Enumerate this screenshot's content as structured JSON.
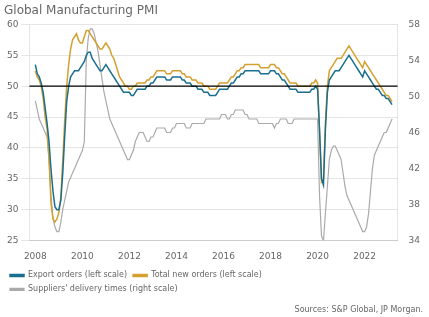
{
  "chart_data": {
    "type": "line",
    "title": "Global Manufacturing PMI",
    "x": [
      2008.0,
      2008.083,
      2008.167,
      2008.25,
      2008.333,
      2008.417,
      2008.5,
      2008.583,
      2008.667,
      2008.75,
      2008.833,
      2008.917,
      2009.0,
      2009.083,
      2009.167,
      2009.25,
      2009.333,
      2009.417,
      2009.5,
      2009.583,
      2009.667,
      2009.75,
      2009.833,
      2009.917,
      2010.0,
      2010.083,
      2010.167,
      2010.25,
      2010.333,
      2010.417,
      2010.5,
      2010.583,
      2010.667,
      2010.75,
      2010.833,
      2010.917,
      2011.0,
      2011.083,
      2011.167,
      2011.25,
      2011.333,
      2011.417,
      2011.5,
      2011.583,
      2011.667,
      2011.75,
      2011.833,
      2011.917,
      2012.0,
      2012.083,
      2012.167,
      2012.25,
      2012.333,
      2012.417,
      2012.5,
      2012.583,
      2012.667,
      2012.75,
      2012.833,
      2012.917,
      2013.0,
      2013.083,
      2013.167,
      2013.25,
      2013.333,
      2013.417,
      2013.5,
      2013.583,
      2013.667,
      2013.75,
      2013.833,
      2013.917,
      2014.0,
      2014.083,
      2014.167,
      2014.25,
      2014.333,
      2014.417,
      2014.5,
      2014.583,
      2014.667,
      2014.75,
      2014.833,
      2014.917,
      2015.0,
      2015.083,
      2015.167,
      2015.25,
      2015.333,
      2015.417,
      2015.5,
      2015.583,
      2015.667,
      2015.75,
      2015.833,
      2015.917,
      2016.0,
      2016.083,
      2016.167,
      2016.25,
      2016.333,
      2016.417,
      2016.5,
      2016.583,
      2016.667,
      2016.75,
      2016.833,
      2016.917,
      2017.0,
      2017.083,
      2017.167,
      2017.25,
      2017.333,
      2017.417,
      2017.5,
      2017.583,
      2017.667,
      2017.75,
      2017.833,
      2017.917,
      2018.0,
      2018.083,
      2018.167,
      2018.25,
      2018.333,
      2018.417,
      2018.5,
      2018.583,
      2018.667,
      2018.75,
      2018.833,
      2018.917,
      2019.0,
      2019.083,
      2019.167,
      2019.25,
      2019.333,
      2019.417,
      2019.5,
      2019.583,
      2019.667,
      2019.75,
      2019.833,
      2019.917,
      2020.0,
      2020.083,
      2020.167,
      2020.25,
      2020.333,
      2020.417,
      2020.5,
      2020.583,
      2020.667,
      2020.75,
      2020.833,
      2020.917,
      2021.0,
      2021.083,
      2021.167,
      2021.25,
      2021.333,
      2021.417,
      2021.5,
      2021.583,
      2021.667,
      2021.75,
      2021.833,
      2021.917,
      2022.0,
      2022.083,
      2022.167,
      2022.25,
      2022.333,
      2022.417,
      2022.5,
      2022.583,
      2022.667,
      2022.75,
      2022.833,
      2022.917,
      2023.0,
      2023.083,
      2023.167
    ],
    "series": [
      {
        "name": "Export orders (left scale)",
        "color": "#1a6e8e",
        "values": [
          53.5,
          52.0,
          51.5,
          50.5,
          49.0,
          46.5,
          44.0,
          41.0,
          36.5,
          33.0,
          30.5,
          30.0,
          30.0,
          31.5,
          36.0,
          42.0,
          47.5,
          50.0,
          51.5,
          52.0,
          52.5,
          52.5,
          52.5,
          53.0,
          53.5,
          54.0,
          55.0,
          55.5,
          55.5,
          54.5,
          54.0,
          53.5,
          53.0,
          52.5,
          52.5,
          53.0,
          53.5,
          53.0,
          52.5,
          52.0,
          51.5,
          51.0,
          50.5,
          50.0,
          49.5,
          49.0,
          49.0,
          49.0,
          49.0,
          48.5,
          48.5,
          49.0,
          49.5,
          49.5,
          49.5,
          49.5,
          49.5,
          50.0,
          50.0,
          50.5,
          50.5,
          51.0,
          51.5,
          51.5,
          51.5,
          51.5,
          51.5,
          51.0,
          51.0,
          51.0,
          51.5,
          51.5,
          51.5,
          51.5,
          51.5,
          51.0,
          51.0,
          50.5,
          50.5,
          50.5,
          50.0,
          50.0,
          50.0,
          49.5,
          49.5,
          49.5,
          49.0,
          49.0,
          49.0,
          48.5,
          48.5,
          48.5,
          48.5,
          49.0,
          49.5,
          49.5,
          49.5,
          49.5,
          49.5,
          50.0,
          50.5,
          50.5,
          51.0,
          51.5,
          51.5,
          52.0,
          52.0,
          52.5,
          52.5,
          52.5,
          52.5,
          52.5,
          52.5,
          52.5,
          52.5,
          52.0,
          52.0,
          52.0,
          52.0,
          52.0,
          52.5,
          52.5,
          52.5,
          52.0,
          52.0,
          51.5,
          51.0,
          51.0,
          50.5,
          50.0,
          49.5,
          49.5,
          49.5,
          49.5,
          49.0,
          49.0,
          49.0,
          49.0,
          49.0,
          49.0,
          49.0,
          49.5,
          49.5,
          50.0,
          49.5,
          43.0,
          35.0,
          34.0,
          43.0,
          49.0,
          51.0,
          51.5,
          52.0,
          52.5,
          52.5,
          52.5,
          53.0,
          53.5,
          54.0,
          54.5,
          55.0,
          54.5,
          54.0,
          53.5,
          53.0,
          52.5,
          52.0,
          51.5,
          52.5,
          52.0,
          51.5,
          51.0,
          50.5,
          50.0,
          49.5,
          49.5,
          49.0,
          48.5,
          48.5,
          48.0,
          48.0,
          47.5,
          47.0
        ]
      },
      {
        "name": "Total new orders (left scale)",
        "color": "#d4a030",
        "values": [
          52.5,
          51.5,
          51.0,
          50.0,
          48.0,
          45.0,
          43.0,
          38.0,
          31.0,
          28.5,
          28.0,
          28.5,
          29.5,
          32.0,
          38.0,
          44.5,
          50.0,
          53.5,
          56.0,
          57.5,
          58.0,
          58.5,
          57.5,
          57.0,
          57.0,
          58.0,
          59.0,
          59.0,
          58.5,
          58.0,
          57.5,
          57.0,
          56.5,
          56.0,
          56.0,
          56.5,
          57.0,
          56.5,
          56.0,
          55.0,
          54.5,
          53.5,
          52.5,
          51.5,
          51.0,
          50.5,
          50.0,
          50.0,
          49.5,
          49.5,
          50.0,
          50.0,
          50.5,
          50.5,
          50.5,
          50.5,
          50.5,
          51.0,
          51.0,
          51.5,
          51.5,
          52.0,
          52.5,
          52.5,
          52.5,
          52.5,
          52.5,
          52.0,
          52.0,
          52.0,
          52.5,
          52.5,
          52.5,
          52.5,
          52.5,
          52.0,
          52.0,
          51.5,
          51.5,
          51.5,
          51.0,
          51.0,
          51.0,
          50.5,
          50.5,
          50.5,
          50.0,
          50.0,
          50.0,
          49.5,
          49.5,
          49.5,
          49.5,
          50.0,
          50.5,
          50.5,
          50.5,
          50.5,
          50.5,
          51.0,
          51.5,
          51.5,
          52.0,
          52.5,
          52.5,
          53.0,
          53.0,
          53.5,
          53.5,
          53.5,
          53.5,
          53.5,
          53.5,
          53.5,
          53.5,
          53.0,
          53.0,
          53.0,
          53.0,
          53.0,
          53.5,
          53.5,
          53.5,
          53.0,
          53.0,
          52.5,
          52.0,
          52.0,
          51.5,
          51.0,
          50.5,
          50.5,
          50.5,
          50.5,
          50.0,
          50.0,
          50.0,
          50.0,
          50.0,
          50.0,
          50.0,
          50.5,
          50.5,
          51.0,
          50.5,
          42.5,
          34.5,
          35.0,
          44.0,
          50.0,
          52.5,
          53.0,
          53.5,
          54.0,
          54.5,
          54.5,
          54.5,
          55.0,
          55.5,
          56.0,
          56.5,
          56.0,
          55.5,
          55.0,
          54.5,
          54.0,
          53.5,
          53.0,
          54.0,
          53.5,
          53.0,
          52.5,
          52.0,
          51.5,
          51.0,
          50.5,
          50.0,
          49.5,
          49.0,
          48.5,
          48.5,
          48.0,
          47.5
        ]
      },
      {
        "name": "Suppliers' delivery times (right scale)",
        "color": "#aaaaaa",
        "axis": "y2",
        "values": [
          49.5,
          48.5,
          47.5,
          47.0,
          46.5,
          46.0,
          45.5,
          43.0,
          39.0,
          36.5,
          35.5,
          35.0,
          35.0,
          36.0,
          37.5,
          38.5,
          39.5,
          40.5,
          41.0,
          41.5,
          42.0,
          42.5,
          43.0,
          43.5,
          44.0,
          45.0,
          54.0,
          56.5,
          57.5,
          57.5,
          57.0,
          56.0,
          55.0,
          53.5,
          52.0,
          50.5,
          49.5,
          48.5,
          47.5,
          47.0,
          46.5,
          46.0,
          45.5,
          45.0,
          44.5,
          44.0,
          43.5,
          43.0,
          43.0,
          43.5,
          44.0,
          45.0,
          45.5,
          46.0,
          46.0,
          46.0,
          45.5,
          45.0,
          45.0,
          45.5,
          45.5,
          46.0,
          46.5,
          46.5,
          46.5,
          46.5,
          46.5,
          46.0,
          46.0,
          46.0,
          46.5,
          46.5,
          47.0,
          47.0,
          47.0,
          47.0,
          47.0,
          46.5,
          46.5,
          46.5,
          47.0,
          47.0,
          47.0,
          47.0,
          47.0,
          47.0,
          47.0,
          47.5,
          47.5,
          47.5,
          47.5,
          47.5,
          47.5,
          47.5,
          47.5,
          48.0,
          48.0,
          48.0,
          47.5,
          47.5,
          48.0,
          48.0,
          48.5,
          48.5,
          48.5,
          48.5,
          48.5,
          48.0,
          48.0,
          47.5,
          47.5,
          47.5,
          47.5,
          47.5,
          47.0,
          47.0,
          47.0,
          47.0,
          47.0,
          47.0,
          47.0,
          47.0,
          46.5,
          47.0,
          47.0,
          47.5,
          47.5,
          47.5,
          47.5,
          47.0,
          47.0,
          47.0,
          47.5,
          47.5,
          47.5,
          47.5,
          47.5,
          47.5,
          47.5,
          47.5,
          47.5,
          47.5,
          47.5,
          47.5,
          47.5,
          39.0,
          34.5,
          34.0,
          37.0,
          40.0,
          43.0,
          44.0,
          44.5,
          44.5,
          44.0,
          43.5,
          43.0,
          41.5,
          40.0,
          39.0,
          38.5,
          38.0,
          37.5,
          37.0,
          36.5,
          36.0,
          35.5,
          35.0,
          35.0,
          35.5,
          37.0,
          39.5,
          42.0,
          43.5,
          44.0,
          44.5,
          45.0,
          45.5,
          46.0,
          46.0,
          46.5,
          47.0,
          47.5
        ]
      }
    ],
    "xlim": [
      2007.75,
      2023.4
    ],
    "xticks": [
      2008,
      2010,
      2012,
      2014,
      2016,
      2018,
      2020,
      2022
    ],
    "ylim": [
      25,
      60
    ],
    "yticks": [
      25,
      30,
      35,
      40,
      45,
      50,
      55,
      60
    ],
    "y2lim": [
      34,
      58
    ],
    "y2ticks": [
      34,
      38,
      42,
      46,
      50,
      54,
      58
    ],
    "grid": "y",
    "legend": "lower left",
    "annotations": [
      {
        "type": "hline",
        "y": 50,
        "color": "#000000"
      },
      {
        "type": "text",
        "text": "Sources: S&P Global, JP Morgan."
      }
    ]
  }
}
